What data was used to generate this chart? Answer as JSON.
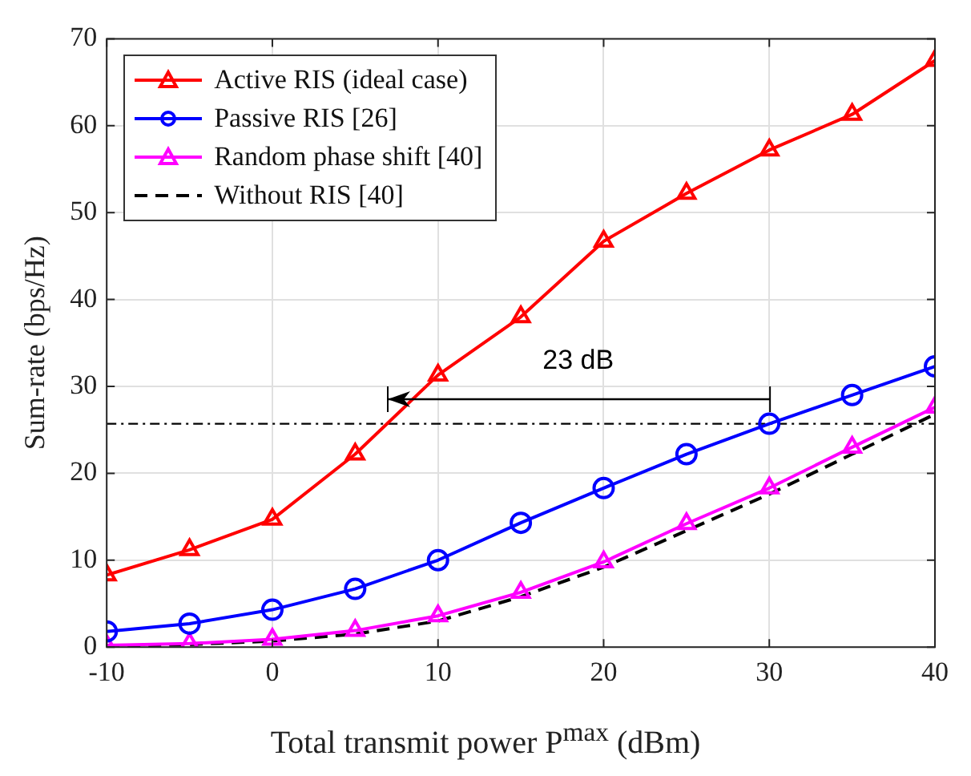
{
  "chart_data": {
    "type": "line",
    "xlabel": "Total transmit power P$^{max}$ (dBm)",
    "ylabel": "Sum-rate (bps/Hz)",
    "x": [
      -10,
      -5,
      0,
      5,
      10,
      15,
      20,
      25,
      30,
      35,
      40
    ],
    "series": [
      {
        "name": "Active RIS (ideal case)",
        "color": "#ff0000",
        "marker": "triangle",
        "line_style": "solid",
        "values": [
          8.3,
          11.2,
          14.7,
          22.2,
          31.3,
          38,
          46.7,
          52.2,
          57.2,
          61.3,
          67.5
        ]
      },
      {
        "name": "Passive RIS [26]",
        "color": "#0000ff",
        "marker": "circle",
        "line_style": "solid",
        "values": [
          1.8,
          2.7,
          4.3,
          6.7,
          10,
          14.3,
          18.3,
          22.2,
          25.7,
          29,
          32.3
        ]
      },
      {
        "name": "Random phase shift [40]",
        "color": "#ff00ff",
        "marker": "triangle",
        "line_style": "solid",
        "values": [
          0.2,
          0.4,
          0.9,
          1.9,
          3.6,
          6.3,
          9.8,
          14.2,
          18.3,
          23,
          27.6
        ]
      },
      {
        "name": "Without RIS [40]",
        "color": "#000000",
        "marker": "none",
        "line_style": "dashed",
        "values": [
          0.1,
          0.3,
          0.7,
          1.5,
          3,
          5.8,
          9.2,
          13.4,
          17.6,
          22.2,
          26.8
        ]
      }
    ],
    "xlim": [
      -10,
      40
    ],
    "xticks": [
      -10,
      0,
      10,
      20,
      30,
      40
    ],
    "ylim": [
      0,
      70
    ],
    "yticks": [
      0,
      10,
      20,
      30,
      40,
      50,
      60,
      70
    ],
    "ref_lines": [
      {
        "axis": "y",
        "value": 25.7,
        "color": "#000000",
        "line_style": "dashdot"
      }
    ],
    "annotations": [
      "23 dB"
    ],
    "grid": true,
    "legend": "top left"
  }
}
